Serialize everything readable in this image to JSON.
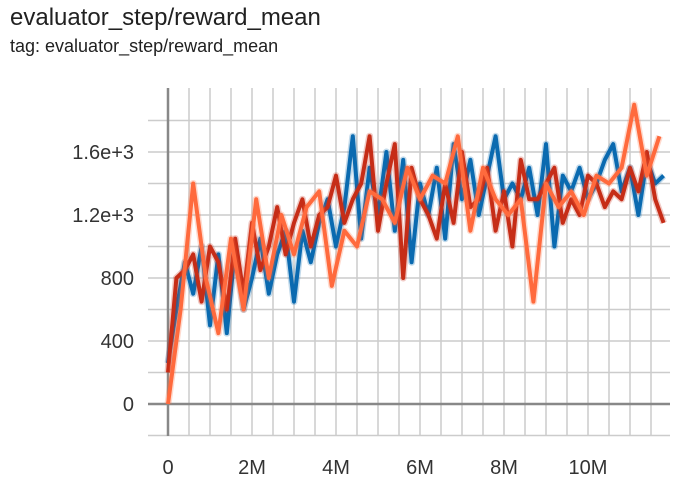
{
  "chart_data": {
    "type": "line",
    "title": "evaluator_step/reward_mean",
    "subtitle": "tag: evaluator_step/reward_mean",
    "xlabel": "",
    "ylabel": "",
    "xlim": [
      -0.5,
      12
    ],
    "ylim": [
      -200,
      2000
    ],
    "grid": true,
    "x_ticks": [
      0,
      2,
      4,
      6,
      8,
      10
    ],
    "x_tick_labels": [
      "0",
      "2M",
      "4M",
      "6M",
      "8M",
      "10M"
    ],
    "y_ticks": [
      0,
      400,
      800,
      1200,
      1600
    ],
    "y_tick_labels": [
      "0",
      "400",
      "800",
      "1.2e+3",
      "1.6e+3"
    ],
    "x_unit": "millions of steps",
    "series": [
      {
        "name": "run-blue",
        "color": "#0a6ab0",
        "x_step": 0.2,
        "values": [
          260,
          600,
          900,
          700,
          1000,
          500,
          950,
          450,
          1000,
          600,
          800,
          1050,
          700,
          950,
          1100,
          650,
          1100,
          900,
          1150,
          1300,
          1000,
          1250,
          1700,
          1050,
          1500,
          1200,
          1600,
          1100,
          1550,
          900,
          1400,
          1200,
          1500,
          1050,
          1650,
          1300,
          1550,
          1200,
          1450,
          1700,
          1300,
          1400,
          1300,
          1500,
          1200,
          1650,
          1000,
          1450,
          1350,
          1500,
          1300,
          1400,
          1550,
          1650,
          1350,
          1500,
          1200,
          1550,
          1400,
          1450
        ]
      },
      {
        "name": "run-red",
        "color": "#c62d17",
        "x_step": 0.2,
        "values": [
          200,
          800,
          850,
          950,
          650,
          1000,
          900,
          600,
          1050,
          700,
          1150,
          850,
          1000,
          1250,
          950,
          1150,
          1300,
          1000,
          1200,
          1250,
          1450,
          1150,
          1300,
          1400,
          1700,
          1100,
          1400,
          1650,
          800,
          1500,
          1300,
          1200,
          1050,
          1400,
          1150,
          1600,
          1250,
          1300,
          1500,
          1100,
          1350,
          1000,
          1550,
          1300,
          1300,
          1400,
          1500,
          1150,
          1300,
          1200,
          1450,
          1400,
          1250,
          1350,
          1300,
          1500,
          1350,
          1600,
          1300,
          1150
        ]
      },
      {
        "name": "run-orange",
        "color": "#ff6a3d",
        "x_step": 0.3,
        "values": [
          0,
          600,
          1400,
          800,
          450,
          1050,
          600,
          1300,
          800,
          1200,
          950,
          1250,
          1350,
          750,
          1100,
          1000,
          1350,
          1300,
          1150,
          1500,
          1300,
          1450,
          1400,
          1700,
          1100,
          1500,
          1300,
          1200,
          1300,
          650,
          1400,
          1250,
          1350,
          1200,
          1450,
          1400,
          1500,
          1900,
          1450,
          1700
        ]
      }
    ]
  }
}
